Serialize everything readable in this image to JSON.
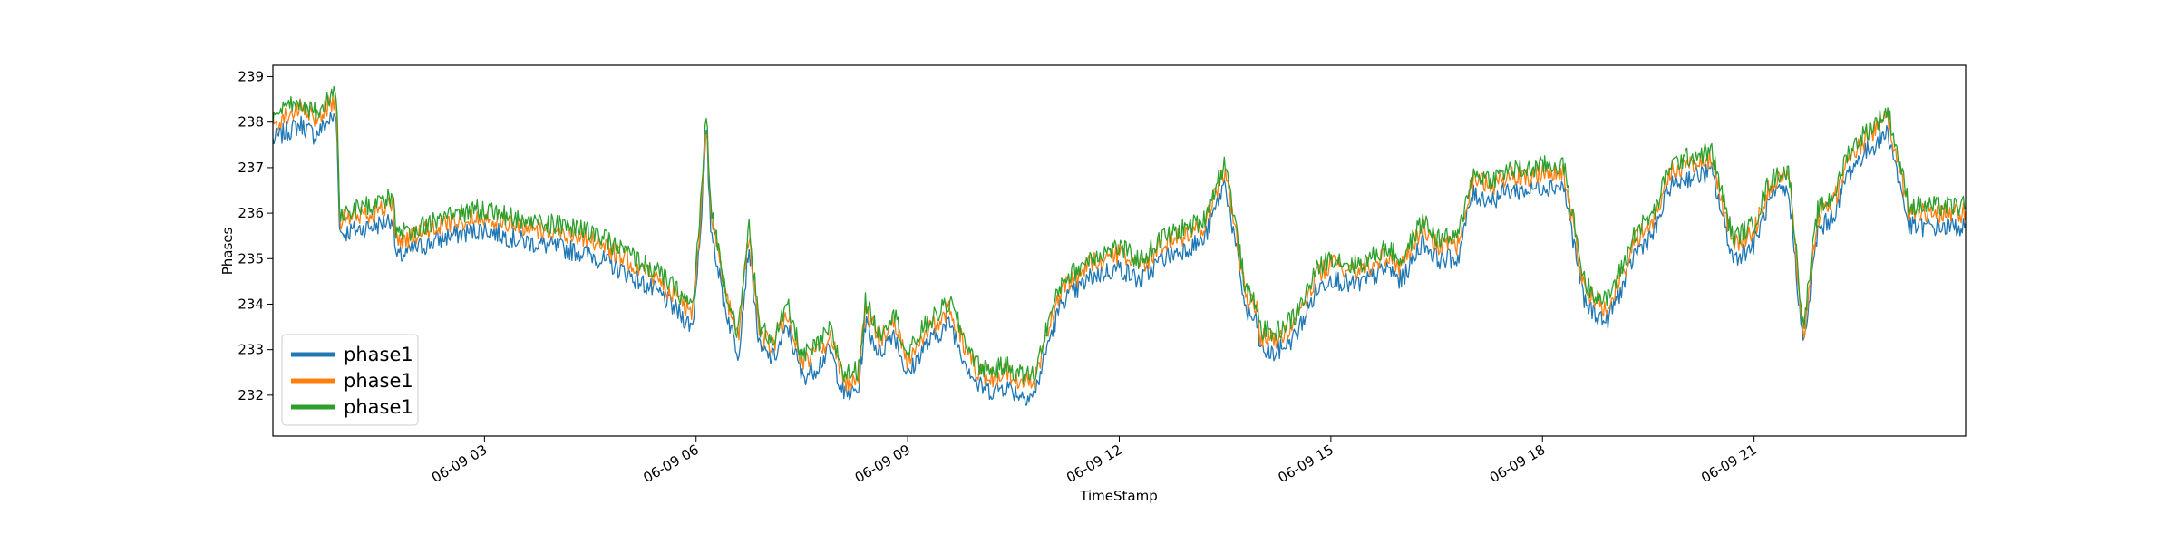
{
  "chart_data": {
    "type": "line",
    "title": "",
    "xlabel": "TimeStamp",
    "ylabel": "Phases",
    "x_range_hours": [
      0,
      24
    ],
    "ylim": [
      231.1,
      239.25
    ],
    "x_ticks": [
      {
        "hour": 3,
        "label": "06-09 03"
      },
      {
        "hour": 6,
        "label": "06-09 06"
      },
      {
        "hour": 9,
        "label": "06-09 09"
      },
      {
        "hour": 12,
        "label": "06-09 12"
      },
      {
        "hour": 15,
        "label": "06-09 15"
      },
      {
        "hour": 18,
        "label": "06-09 18"
      },
      {
        "hour": 21,
        "label": "06-09 21"
      }
    ],
    "y_ticks": [
      232,
      233,
      234,
      235,
      236,
      237,
      238,
      239
    ],
    "legend_position": "lower-left",
    "grid": false,
    "series": [
      {
        "name": "phase1",
        "color": "#1f77b4",
        "hours": [
          0,
          0.2,
          0.4,
          0.6,
          0.8,
          0.9,
          0.95,
          1.1,
          1.5,
          1.7,
          1.75,
          2,
          2.5,
          3,
          3.5,
          4,
          4.5,
          5,
          5.5,
          5.95,
          6.05,
          6.15,
          6.2,
          6.4,
          6.6,
          6.75,
          6.9,
          7.1,
          7.3,
          7.5,
          7.7,
          7.9,
          8.1,
          8.3,
          8.4,
          8.6,
          8.8,
          9,
          9.2,
          9.4,
          9.6,
          9.8,
          10,
          10.2,
          10.4,
          10.6,
          10.8,
          11,
          11.2,
          11.4,
          11.6,
          11.8,
          12,
          12.3,
          12.6,
          12.9,
          13.2,
          13.5,
          13.8,
          13.95,
          14,
          14.2,
          14.5,
          14.8,
          15,
          15.3,
          15.5,
          15.8,
          16,
          16.3,
          16.5,
          16.8,
          17,
          17.3,
          17.5,
          17.8,
          18,
          18.3,
          18.6,
          18.9,
          19.2,
          19.3,
          19.6,
          19.8,
          20.1,
          20.4,
          20.7,
          21,
          21.2,
          21.4,
          21.5,
          21.7,
          21.9,
          22.1,
          22.2,
          22.3,
          22.5,
          22.7,
          22.9,
          23.2,
          23.5,
          23.8,
          23.9,
          24
        ],
        "values": [
          237.6,
          237.8,
          237.95,
          237.7,
          238.05,
          238.1,
          235.55,
          235.6,
          235.75,
          235.9,
          235.0,
          235.2,
          235.5,
          235.65,
          235.4,
          235.25,
          235.1,
          234.7,
          234.2,
          233.5,
          235.4,
          237.8,
          235.8,
          234.0,
          232.9,
          235.3,
          233.0,
          232.8,
          233.5,
          232.4,
          232.6,
          233.0,
          232.0,
          232.1,
          233.6,
          232.9,
          233.4,
          232.4,
          233.0,
          233.3,
          233.6,
          232.8,
          232.2,
          232.1,
          232.2,
          232.0,
          232.0,
          233.2,
          234.1,
          234.3,
          234.6,
          234.7,
          234.8,
          234.5,
          235.0,
          235.2,
          235.4,
          236.7,
          233.8,
          233.6,
          233.0,
          232.9,
          233.3,
          234.3,
          234.6,
          234.4,
          234.5,
          234.8,
          234.5,
          235.4,
          235.0,
          235.0,
          236.4,
          236.3,
          236.5,
          236.5,
          236.6,
          236.6,
          234.0,
          233.6,
          234.6,
          235.1,
          235.6,
          236.6,
          236.8,
          236.9,
          235.0,
          235.3,
          236.2,
          236.5,
          236.4,
          233.0,
          235.6,
          235.9,
          236.2,
          236.8,
          237.2,
          237.5,
          237.8,
          235.7,
          235.7,
          235.7,
          235.7,
          235.7
        ]
      },
      {
        "name": "phase1",
        "color": "#ff7f0e",
        "hours": [
          0,
          0.2,
          0.4,
          0.6,
          0.8,
          0.9,
          0.95,
          1.1,
          1.5,
          1.7,
          1.75,
          2,
          2.5,
          3,
          3.5,
          4,
          4.5,
          5,
          5.5,
          5.95,
          6.05,
          6.15,
          6.2,
          6.4,
          6.6,
          6.75,
          6.9,
          7.1,
          7.3,
          7.5,
          7.7,
          7.9,
          8.1,
          8.3,
          8.4,
          8.6,
          8.8,
          9,
          9.2,
          9.4,
          9.6,
          9.8,
          10,
          10.2,
          10.4,
          10.6,
          10.8,
          11,
          11.2,
          11.4,
          11.6,
          11.8,
          12,
          12.3,
          12.6,
          12.9,
          13.2,
          13.5,
          13.8,
          13.95,
          14,
          14.2,
          14.5,
          14.8,
          15,
          15.3,
          15.5,
          15.8,
          16,
          16.3,
          16.5,
          16.8,
          17,
          17.3,
          17.5,
          17.8,
          18,
          18.3,
          18.6,
          18.9,
          19.2,
          19.3,
          19.6,
          19.8,
          20.1,
          20.4,
          20.7,
          21,
          21.2,
          21.4,
          21.5,
          21.7,
          21.9,
          22.1,
          22.2,
          22.3,
          22.5,
          22.7,
          22.9,
          23.2,
          23.5,
          23.8,
          23.9,
          24
        ],
        "values": [
          237.95,
          238.15,
          238.3,
          238.05,
          238.4,
          238.5,
          235.85,
          235.9,
          236.05,
          236.2,
          235.35,
          235.5,
          235.8,
          235.95,
          235.7,
          235.6,
          235.45,
          235.0,
          234.5,
          233.8,
          235.7,
          238.1,
          236.1,
          234.3,
          233.2,
          235.6,
          233.3,
          233.1,
          233.8,
          232.7,
          232.9,
          233.3,
          232.3,
          232.4,
          233.9,
          233.2,
          233.7,
          232.7,
          233.3,
          233.6,
          233.9,
          233.1,
          232.5,
          232.4,
          232.5,
          232.3,
          232.3,
          233.5,
          234.4,
          234.6,
          234.9,
          235.0,
          235.1,
          234.8,
          235.3,
          235.5,
          235.7,
          237.0,
          234.1,
          233.9,
          233.3,
          233.2,
          233.6,
          234.6,
          234.9,
          234.7,
          234.8,
          235.1,
          234.8,
          235.7,
          235.3,
          235.3,
          236.7,
          236.6,
          236.8,
          236.8,
          236.9,
          236.9,
          234.3,
          233.9,
          234.9,
          235.4,
          235.9,
          236.9,
          237.1,
          237.2,
          235.3,
          235.6,
          236.5,
          236.8,
          236.7,
          233.3,
          235.9,
          236.2,
          236.5,
          237.1,
          237.5,
          237.8,
          238.1,
          236.0,
          236.0,
          236.0,
          236.0,
          236.0
        ]
      },
      {
        "name": "phase1",
        "color": "#2ca02c",
        "hours": [
          0,
          0.2,
          0.4,
          0.6,
          0.8,
          0.9,
          0.95,
          1.1,
          1.5,
          1.7,
          1.75,
          2,
          2.5,
          3,
          3.5,
          4,
          4.5,
          5,
          5.5,
          5.95,
          6.05,
          6.15,
          6.2,
          6.4,
          6.6,
          6.75,
          6.9,
          7.1,
          7.3,
          7.5,
          7.7,
          7.9,
          8.1,
          8.3,
          8.4,
          8.6,
          8.8,
          9,
          9.2,
          9.4,
          9.6,
          9.8,
          10,
          10.2,
          10.4,
          10.6,
          10.8,
          11,
          11.2,
          11.4,
          11.6,
          11.8,
          12,
          12.3,
          12.6,
          12.9,
          13.2,
          13.5,
          13.8,
          13.95,
          14,
          14.2,
          14.5,
          14.8,
          15,
          15.3,
          15.5,
          15.8,
          16,
          16.3,
          16.5,
          16.8,
          17,
          17.3,
          17.5,
          17.8,
          18,
          18.3,
          18.6,
          18.9,
          19.2,
          19.3,
          19.6,
          19.8,
          20.1,
          20.4,
          20.7,
          21,
          21.2,
          21.4,
          21.5,
          21.7,
          21.9,
          22.1,
          22.2,
          22.3,
          22.5,
          22.7,
          22.9,
          23.2,
          23.5,
          23.8,
          23.9,
          24
        ],
        "values": [
          238.1,
          238.3,
          238.45,
          238.2,
          238.55,
          238.65,
          236.0,
          236.05,
          236.2,
          236.35,
          235.5,
          235.65,
          235.95,
          236.1,
          235.85,
          235.75,
          235.6,
          235.15,
          234.65,
          233.95,
          235.85,
          238.25,
          236.25,
          234.45,
          233.35,
          235.75,
          233.45,
          233.25,
          233.95,
          232.85,
          233.05,
          233.45,
          232.45,
          232.55,
          234.05,
          233.35,
          233.85,
          232.85,
          233.45,
          233.75,
          234.05,
          233.25,
          232.65,
          232.55,
          232.65,
          232.45,
          232.45,
          233.65,
          234.55,
          234.75,
          235.05,
          235.15,
          235.25,
          234.95,
          235.45,
          235.65,
          235.85,
          237.15,
          234.25,
          234.05,
          233.45,
          233.35,
          233.75,
          234.75,
          235.05,
          234.85,
          234.95,
          235.25,
          234.95,
          235.85,
          235.45,
          235.45,
          236.85,
          236.75,
          236.95,
          236.95,
          237.05,
          237.05,
          234.45,
          234.05,
          235.05,
          235.55,
          236.05,
          237.05,
          237.25,
          237.35,
          235.45,
          235.75,
          236.65,
          236.95,
          236.85,
          233.45,
          236.05,
          236.35,
          236.65,
          237.25,
          237.65,
          237.95,
          238.25,
          236.15,
          236.15,
          236.15,
          236.15,
          236.15
        ]
      }
    ]
  }
}
